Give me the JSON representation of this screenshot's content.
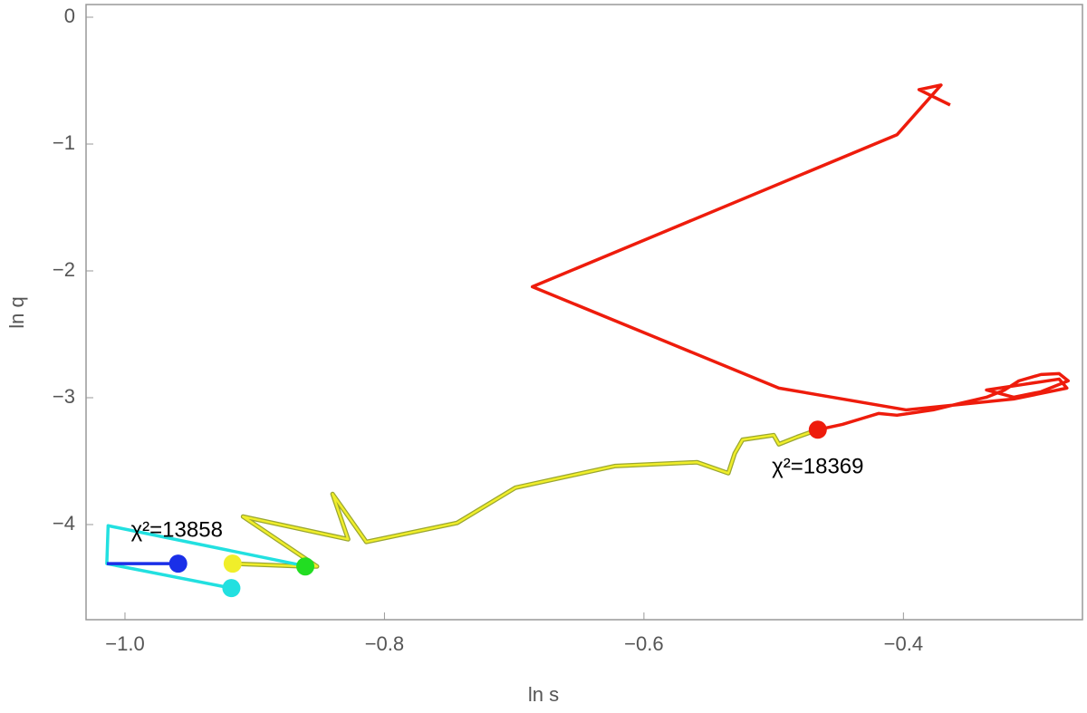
{
  "chart_data": {
    "type": "line",
    "xlabel": "ln s",
    "ylabel": "ln q",
    "xlim": [
      -1.03,
      -0.262
    ],
    "ylim": [
      -4.75,
      0.1
    ],
    "xticks": [
      {
        "value": -1.0,
        "label": "−1.0"
      },
      {
        "value": -0.8,
        "label": "−0.8"
      },
      {
        "value": -0.6,
        "label": "−0.6"
      },
      {
        "value": -0.4,
        "label": "−0.4"
      }
    ],
    "yticks": [
      {
        "value": 0,
        "label": "0"
      },
      {
        "value": -1,
        "label": "−1"
      },
      {
        "value": -2,
        "label": "−2"
      },
      {
        "value": -3,
        "label": "−3"
      },
      {
        "value": -4,
        "label": "−4"
      }
    ],
    "series": [
      {
        "color": "#ee1c0c",
        "x": [
          -0.466,
          -0.447,
          -0.433,
          -0.419,
          -0.405,
          -0.391,
          -0.377,
          -0.357,
          -0.336,
          -0.322,
          -0.311,
          -0.294,
          -0.28,
          -0.273,
          -0.294,
          -0.315,
          -0.336,
          -0.308,
          -0.28,
          -0.274,
          -0.315,
          -0.398,
          -0.496,
          -0.686,
          -0.405,
          -0.371,
          -0.388,
          -0.364
        ],
        "values": [
          -3.252,
          -3.21,
          -3.167,
          -3.124,
          -3.138,
          -3.117,
          -3.096,
          -3.046,
          -2.996,
          -2.939,
          -2.867,
          -2.817,
          -2.81,
          -2.867,
          -2.953,
          -2.996,
          -2.939,
          -2.896,
          -2.853,
          -2.924,
          -3.01,
          -3.096,
          -2.924,
          -2.125,
          -0.927,
          -0.535,
          -0.571,
          -0.692
        ]
      },
      {
        "color": "#f0ee2a",
        "x": [
          -0.466,
          -0.482,
          -0.496,
          -0.5,
          -0.524,
          -0.53,
          -0.535,
          -0.559,
          -0.622,
          -0.699,
          -0.744,
          -0.814,
          -0.84,
          -0.828,
          -0.909,
          -0.852,
          -0.861,
          -0.917
        ],
        "values": [
          -3.252,
          -3.31,
          -3.367,
          -3.295,
          -3.331,
          -3.438,
          -3.595,
          -3.509,
          -3.538,
          -3.709,
          -3.987,
          -4.137,
          -3.759,
          -4.116,
          -3.937,
          -4.33,
          -4.33,
          -4.308
        ]
      },
      {
        "color": "#22e0e0",
        "x": [
          -0.918,
          -1.014,
          -1.013,
          -0.856
        ],
        "values": [
          -4.501,
          -4.308,
          -4.009,
          -4.337
        ]
      },
      {
        "color": "#1a2fe8",
        "x": [
          -1.014,
          -0.959
        ],
        "values": [
          -4.308,
          -4.308
        ]
      }
    ],
    "points": [
      {
        "color": "#ee1c0c",
        "x": -0.466,
        "y": -3.252
      },
      {
        "color": "#f0ee2a",
        "x": -0.917,
        "y": -4.308
      },
      {
        "color": "#22dd22",
        "x": -0.861,
        "y": -4.33
      },
      {
        "color": "#22e0e0",
        "x": -0.918,
        "y": -4.501
      },
      {
        "color": "#1a2fe8",
        "x": -0.959,
        "y": -4.308
      }
    ],
    "annotations": [
      {
        "text": "χ²=18369",
        "x": -0.466,
        "y": -3.55
      },
      {
        "text": "χ²=13858",
        "x": -0.96,
        "y": -4.05
      }
    ]
  }
}
